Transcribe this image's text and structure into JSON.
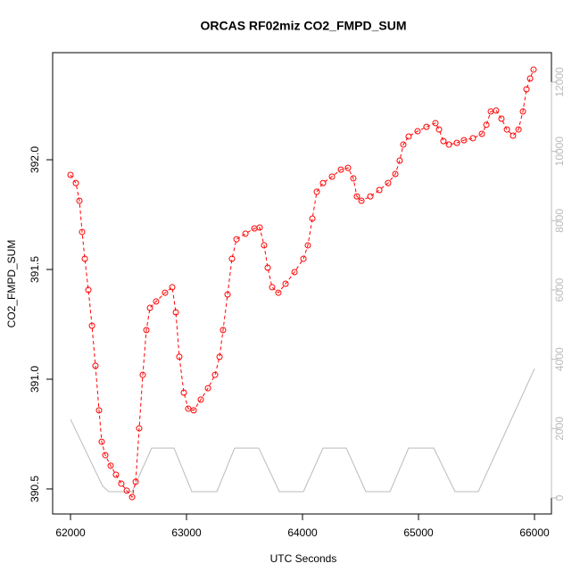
{
  "chart_data": {
    "type": "scatter",
    "title": "ORCAS RF02miz CO2_FMPD_SUM",
    "xlabel": "UTC Seconds",
    "ylabel": "CO2_FMPD_SUM",
    "xlim": [
      61846,
      66146
    ],
    "xticks": [
      62000,
      63000,
      64000,
      65000,
      66000
    ],
    "ylim": [
      390.386,
      392.488
    ],
    "yticks": [
      390.5,
      {
        "value": 391,
        "label": "391.0"
      },
      391.5,
      {
        "value": 392,
        "label": "392.0"
      }
    ],
    "y2lim": [
      -464,
      12850
    ],
    "y2ticks": [
      0,
      2000,
      4000,
      6000,
      8000,
      10000,
      12000
    ],
    "series": [
      {
        "type": "scatter",
        "color": "#ff0000",
        "x": [
          62000,
          62046,
          62077,
          62100,
          62123,
          62154,
          62185,
          62215,
          62246,
          62269,
          62300,
          62346,
          62392,
          62438,
          62485,
          62531,
          62562,
          62592,
          62623,
          62654,
          62685,
          62738,
          62815,
          62877,
          62908,
          62938,
          62977,
          63015,
          63062,
          63123,
          63185,
          63246,
          63285,
          63315,
          63354,
          63392,
          63431,
          63508,
          63585,
          63631,
          63669,
          63700,
          63738,
          63792,
          63854,
          63931,
          64008,
          64046,
          64085,
          64123,
          64177,
          64254,
          64331,
          64392,
          64438,
          64469,
          64508,
          64585,
          64662,
          64738,
          64800,
          64838,
          64869,
          64915,
          64992,
          65069,
          65146,
          65177,
          65215,
          65262,
          65331,
          65392,
          65469,
          65546,
          65585,
          65623,
          65669,
          65715,
          65762,
          65815,
          65862,
          65900,
          65931,
          65962,
          65992
        ],
        "values": [
          391.931,
          391.894,
          391.813,
          391.671,
          391.549,
          391.407,
          391.244,
          391.061,
          390.858,
          390.715,
          390.654,
          390.606,
          390.565,
          390.524,
          390.492,
          390.463,
          390.533,
          390.776,
          391.02,
          391.224,
          391.325,
          391.354,
          391.394,
          391.419,
          391.305,
          391.102,
          390.939,
          390.866,
          390.858,
          390.907,
          390.959,
          391.02,
          391.102,
          391.224,
          391.386,
          391.549,
          391.638,
          391.663,
          391.687,
          391.691,
          391.61,
          391.508,
          391.419,
          391.394,
          391.435,
          391.488,
          391.549,
          391.61,
          391.732,
          391.854,
          391.894,
          391.923,
          391.955,
          391.963,
          391.915,
          391.833,
          391.813,
          391.833,
          391.862,
          391.894,
          391.935,
          391.996,
          392.069,
          392.106,
          392.13,
          392.15,
          392.167,
          392.138,
          392.085,
          392.069,
          392.077,
          392.089,
          392.098,
          392.118,
          392.159,
          392.22,
          392.224,
          392.187,
          392.138,
          392.11,
          392.138,
          392.22,
          392.321,
          392.37,
          392.411
        ]
      },
      {
        "type": "line",
        "axis": "y2",
        "color": "#bbbbbb",
        "x": [
          62000,
          62277,
          62331,
          62531,
          62700,
          62892,
          63046,
          63262,
          63415,
          63623,
          63800,
          64008,
          64177,
          64377,
          64546,
          64754,
          64915,
          65131,
          65315,
          65515,
          66000
        ],
        "values": [
          2270,
          340,
          180,
          180,
          1440,
          1440,
          180,
          180,
          1440,
          1440,
          180,
          180,
          1440,
          1440,
          180,
          180,
          1440,
          1440,
          180,
          180,
          3730
        ]
      }
    ]
  }
}
